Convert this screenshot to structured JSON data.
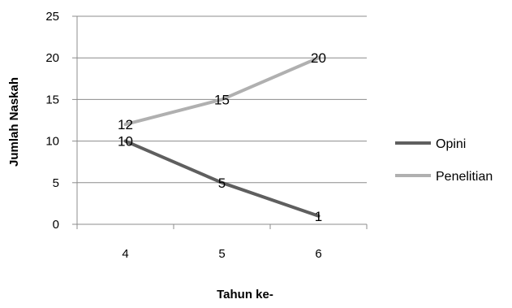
{
  "chart_data": {
    "type": "line",
    "xlabel": "Tahun ke-",
    "ylabel": "Jumlah Naskah",
    "categories": [
      "4",
      "5",
      "6"
    ],
    "ylim": [
      0,
      25
    ],
    "yticks": [
      0,
      5,
      10,
      15,
      20,
      25
    ],
    "grid": true,
    "legend": "right",
    "series": [
      {
        "name": "Opini",
        "values": [
          10,
          5,
          1
        ],
        "color": "#5f5f5f"
      },
      {
        "name": "Penelitian",
        "values": [
          12,
          15,
          20
        ],
        "color": "#b0b0b0"
      }
    ]
  }
}
